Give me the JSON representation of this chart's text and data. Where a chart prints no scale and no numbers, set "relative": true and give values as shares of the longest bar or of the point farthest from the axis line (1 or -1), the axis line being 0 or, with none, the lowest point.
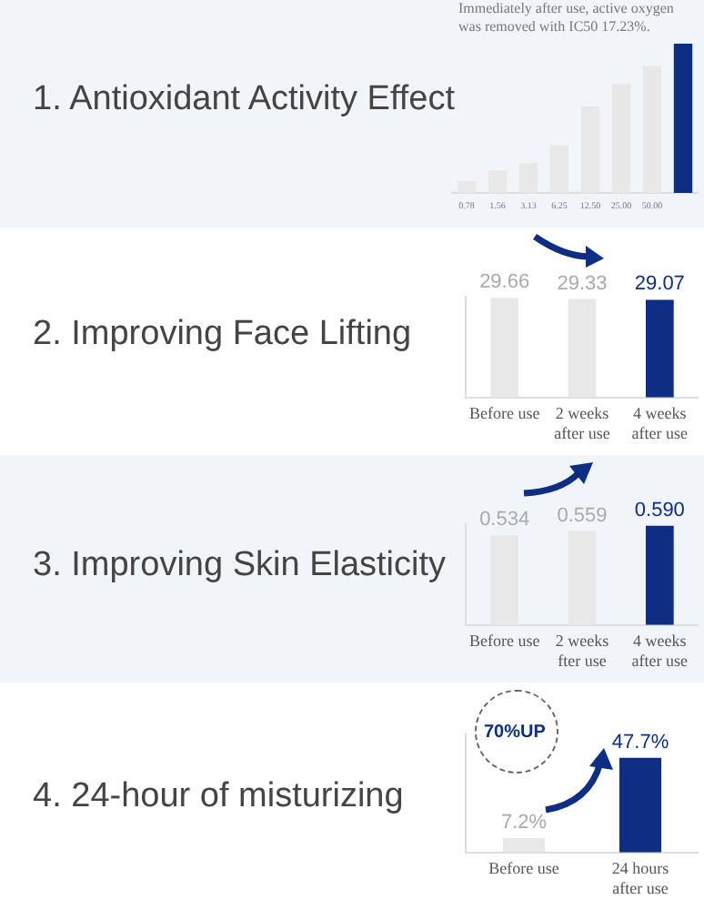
{
  "chart_data": [
    {
      "type": "bar",
      "title": "1. Antioxidant Activity Effect",
      "annotations": [
        "Immediately after use, active oxygen was removed with IC50 17.23%."
      ],
      "categories": [
        "0.78",
        "1.56",
        "3.13",
        "6.25",
        "12.50",
        "25.00",
        "50.00",
        null
      ],
      "values": [
        0.08,
        0.15,
        0.2,
        0.32,
        0.58,
        0.73,
        0.85,
        1
      ],
      "colors": [
        "#e8e8e8",
        "#e8e8e8",
        "#e8e8e8",
        "#e8e8e8",
        "#e8e8e8",
        "#e8e8e8",
        "#e8e8e8",
        "#0d2e82"
      ],
      "relative": true,
      "tick_labels": "x",
      "grid": false,
      "legend": false
    },
    {
      "type": "bar",
      "title": "2. Improving Face Lifting",
      "categories": [
        "Before use",
        "2 weeks after use",
        "4 weeks after use"
      ],
      "values": [
        29.66,
        29.33,
        29.07
      ],
      "colors": [
        "#e8e8e8",
        "#e8e8e8",
        "#0d2e82"
      ],
      "data_labels": true,
      "tick_labels": "x",
      "grid": false,
      "legend": false
    },
    {
      "type": "bar",
      "title": "3. Improving Skin Elasticity",
      "categories": [
        "Before use",
        "2 weeks fter use",
        "4 weeks after use"
      ],
      "values": [
        0.534,
        0.559,
        0.59
      ],
      "value_labels": [
        "0.534",
        "0.559",
        "0.590"
      ],
      "colors": [
        "#e8e8e8",
        "#e8e8e8",
        "#0d2e82"
      ],
      "tick_labels": "x",
      "grid": false,
      "legend": false
    },
    {
      "type": "bar",
      "title": "4. 24-hour of misturizing",
      "annotations": [
        "70%UP"
      ],
      "categories": [
        "Before use",
        "24 hours after use"
      ],
      "values": [
        7.2,
        47.7
      ],
      "value_labels": [
        "7.2%",
        "47.7%"
      ],
      "colors": [
        "#e8e8e8",
        "#0d2e82"
      ],
      "tick_labels": "x",
      "grid": false,
      "legend": false
    }
  ]
}
